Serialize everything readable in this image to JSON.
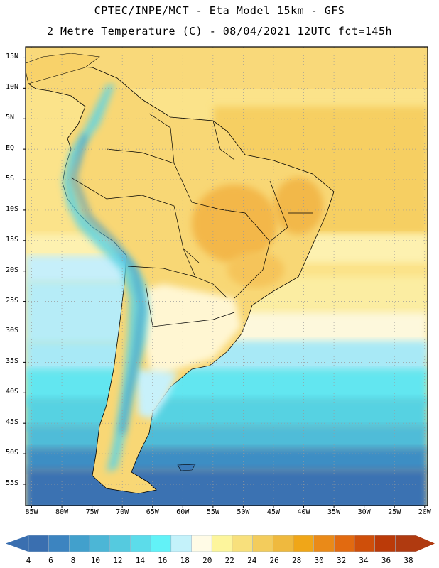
{
  "title_line1": "CPTEC/INPE/MCT -  Eta Model 15km - GFS",
  "title_line2": "2 Metre Temperature (C) - 08/04/2021 12UTC fct=145h",
  "map": {
    "lon_range": [
      -86,
      -19.5
    ],
    "lat_range": [
      -58.5,
      16.8
    ],
    "lat_ticks": [
      {
        "value": 15,
        "label": "15N"
      },
      {
        "value": 10,
        "label": "10N"
      },
      {
        "value": 5,
        "label": "5N"
      },
      {
        "value": 0,
        "label": "EQ"
      },
      {
        "value": -5,
        "label": "5S"
      },
      {
        "value": -10,
        "label": "10S"
      },
      {
        "value": -15,
        "label": "15S"
      },
      {
        "value": -20,
        "label": "20S"
      },
      {
        "value": -25,
        "label": "25S"
      },
      {
        "value": -30,
        "label": "30S"
      },
      {
        "value": -35,
        "label": "35S"
      },
      {
        "value": -40,
        "label": "40S"
      },
      {
        "value": -45,
        "label": "45S"
      },
      {
        "value": -50,
        "label": "50S"
      },
      {
        "value": -55,
        "label": "55S"
      }
    ],
    "lon_ticks": [
      {
        "value": -85,
        "label": "85W"
      },
      {
        "value": -80,
        "label": "80W"
      },
      {
        "value": -75,
        "label": "75W"
      },
      {
        "value": -70,
        "label": "70W"
      },
      {
        "value": -65,
        "label": "65W"
      },
      {
        "value": -60,
        "label": "60W"
      },
      {
        "value": -55,
        "label": "55W"
      },
      {
        "value": -50,
        "label": "50W"
      },
      {
        "value": -45,
        "label": "45W"
      },
      {
        "value": -40,
        "label": "40W"
      },
      {
        "value": -35,
        "label": "35W"
      },
      {
        "value": -30,
        "label": "30W"
      },
      {
        "value": -25,
        "label": "25W"
      },
      {
        "value": -20,
        "label": "20W"
      }
    ]
  },
  "colorbar": {
    "labels": [
      "4",
      "6",
      "8",
      "10",
      "12",
      "14",
      "16",
      "18",
      "20",
      "22",
      "24",
      "26",
      "28",
      "30",
      "32",
      "34",
      "36",
      "38"
    ],
    "colors": [
      "#3a6fb0",
      "#3c84c0",
      "#42a0cc",
      "#4cb6d6",
      "#55cadf",
      "#5cdcea",
      "#62f2f7",
      "#c4f2fa",
      "#fffbe6",
      "#fdf59c",
      "#f8e07c",
      "#f3cc5c",
      "#efb93e",
      "#f0a618",
      "#ea8a18",
      "#e26a10",
      "#cf4f0a",
      "#bb3a08",
      "#b03a10"
    ]
  }
}
